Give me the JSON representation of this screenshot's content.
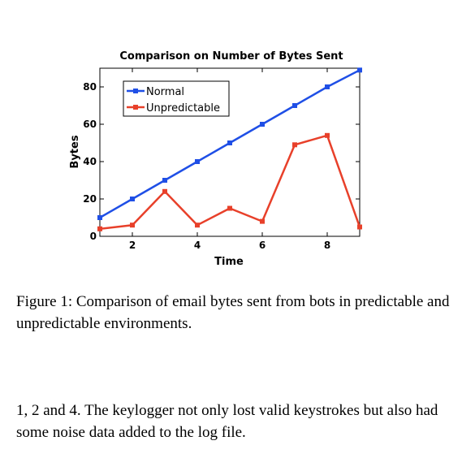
{
  "chart_data": {
    "type": "line",
    "title": "Comparison on Number of Bytes Sent",
    "xlabel": "Time",
    "ylabel": "Bytes",
    "xlim": [
      1,
      9
    ],
    "ylim": [
      0,
      90
    ],
    "xticks": [
      2,
      4,
      6,
      8
    ],
    "yticks": [
      0,
      20,
      40,
      60,
      80
    ],
    "legend_position": "top-left",
    "x": [
      1,
      2,
      3,
      4,
      5,
      6,
      7,
      8,
      9
    ],
    "series": [
      {
        "name": "Normal",
        "color": "#1f4fe6",
        "marker": "square",
        "values": [
          10,
          20,
          30,
          40,
          50,
          60,
          70,
          80,
          89
        ]
      },
      {
        "name": "Unpredictable",
        "color": "#e8402a",
        "marker": "square",
        "values": [
          4,
          6,
          24,
          6,
          15,
          8,
          49,
          54,
          5
        ]
      }
    ]
  },
  "caption": "Figure 1:  Comparison of email bytes sent from bots in predictable and unpredictable environments.",
  "body_text": "1, 2 and 4.  The keylogger not only lost valid keystrokes but also had some noise data added to the log file."
}
